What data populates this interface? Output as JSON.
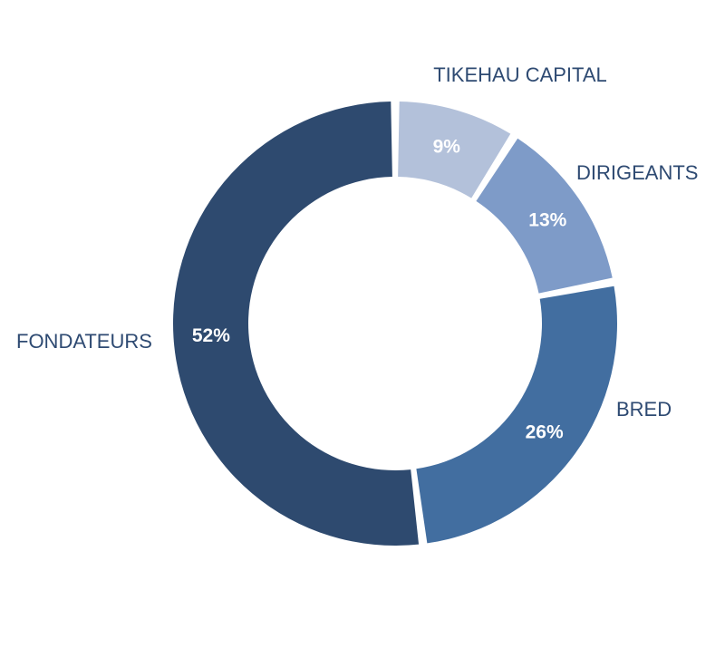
{
  "chart_data": {
    "type": "pie",
    "donut": true,
    "slices": [
      {
        "label": "TIKEHAU CAPITAL",
        "value": 9,
        "value_label": "9%",
        "color": "#b3c1da"
      },
      {
        "label": "DIRIGEANTS",
        "value": 13,
        "value_label": "13%",
        "color": "#7e9bc8"
      },
      {
        "label": "BRED",
        "value": 26,
        "value_label": "26%",
        "color": "#426ea0"
      },
      {
        "label": "FONDATEURS",
        "value": 52,
        "value_label": "52%",
        "color": "#2e4a6f"
      }
    ]
  }
}
